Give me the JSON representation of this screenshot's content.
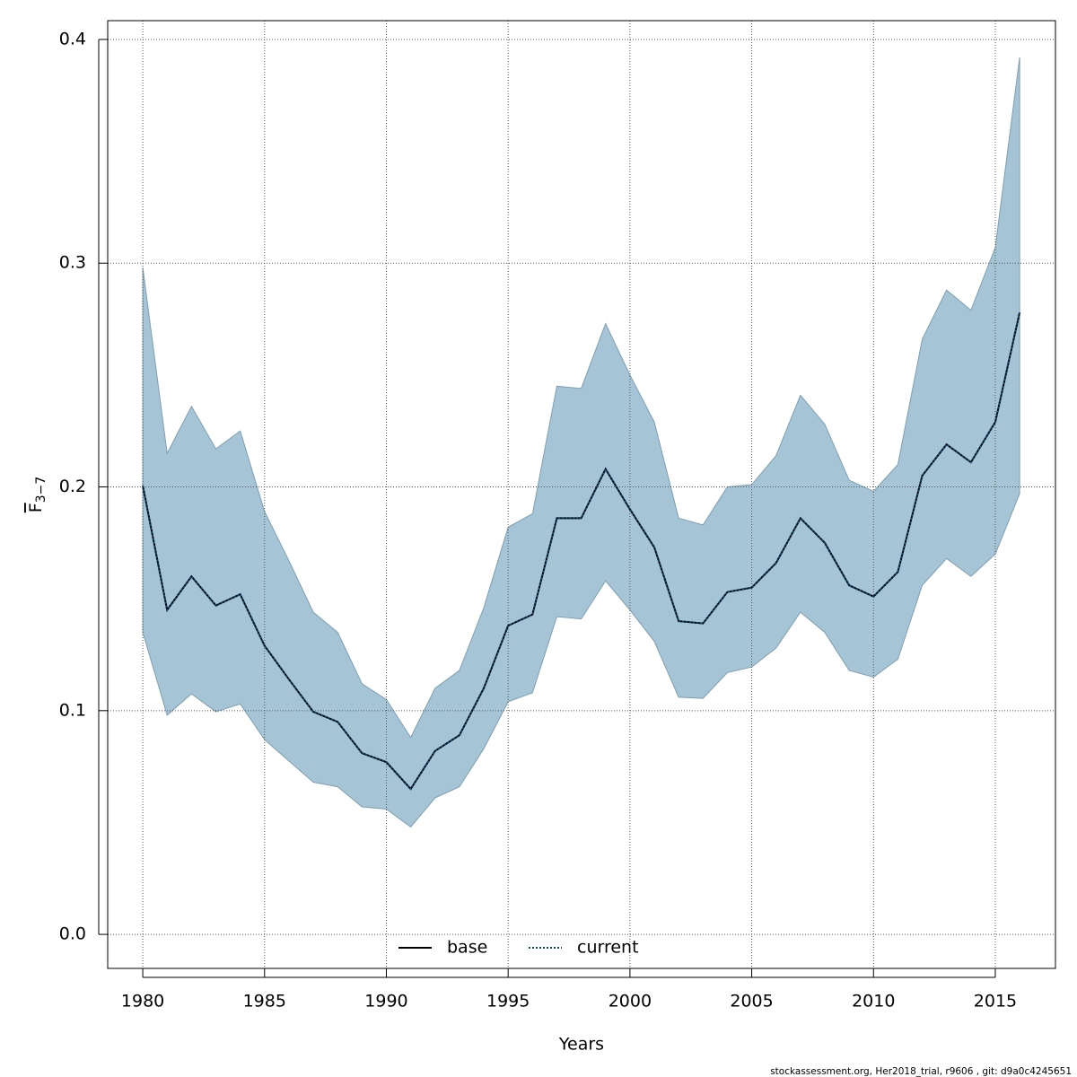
{
  "chart_data": {
    "type": "line",
    "xlabel": "Years",
    "ylabel": {
      "base": "F",
      "subscript": "3−7"
    },
    "footer": "stockassessment.org, Her2018_trial, r9606 , git: d9a0c4245651",
    "x": [
      1980,
      1981,
      1982,
      1983,
      1984,
      1985,
      1986,
      1987,
      1988,
      1989,
      1990,
      1991,
      1992,
      1993,
      1994,
      1995,
      1996,
      1997,
      1998,
      1999,
      2000,
      2001,
      2002,
      2003,
      2004,
      2005,
      2006,
      2007,
      2008,
      2009,
      2010,
      2011,
      2012,
      2013,
      2014,
      2015,
      2016
    ],
    "band": {
      "color": "#a5c4d6",
      "upper": [
        0.298,
        0.215,
        0.236,
        0.217,
        0.225,
        0.189,
        0.167,
        0.144,
        0.135,
        0.112,
        0.105,
        0.088,
        0.11,
        0.118,
        0.146,
        0.182,
        0.188,
        0.245,
        0.244,
        0.273,
        0.25,
        0.229,
        0.186,
        0.183,
        0.2,
        0.201,
        0.214,
        0.241,
        0.228,
        0.203,
        0.198,
        0.21,
        0.266,
        0.288,
        0.279,
        0.307,
        0.392
      ],
      "lower": [
        0.135,
        0.098,
        0.1075,
        0.0995,
        0.103,
        0.087,
        0.0775,
        0.068,
        0.066,
        0.057,
        0.056,
        0.048,
        0.061,
        0.066,
        0.083,
        0.104,
        0.108,
        0.142,
        0.141,
        0.158,
        0.145,
        0.131,
        0.106,
        0.1055,
        0.117,
        0.1195,
        0.128,
        0.144,
        0.135,
        0.118,
        0.115,
        0.123,
        0.156,
        0.168,
        0.16,
        0.17,
        0.197
      ]
    },
    "series": [
      {
        "name": "base",
        "color": "#000000",
        "dash": "solid",
        "values": [
          0.2006,
          0.145,
          0.16,
          0.147,
          0.152,
          0.129,
          0.114,
          0.0995,
          0.095,
          0.081,
          0.077,
          0.065,
          0.082,
          0.089,
          0.11,
          0.138,
          0.143,
          0.186,
          0.186,
          0.208,
          0.19,
          0.173,
          0.14,
          0.139,
          0.153,
          0.155,
          0.166,
          0.186,
          0.175,
          0.156,
          0.151,
          0.162,
          0.205,
          0.219,
          0.211,
          0.229,
          0.278
        ]
      },
      {
        "name": "current",
        "color": "#0b4f7a",
        "dash": "dotted",
        "values": [
          0.2006,
          0.145,
          0.16,
          0.147,
          0.152,
          0.129,
          0.114,
          0.0995,
          0.095,
          0.081,
          0.077,
          0.065,
          0.082,
          0.089,
          0.11,
          0.138,
          0.143,
          0.186,
          0.186,
          0.208,
          0.19,
          0.173,
          0.14,
          0.139,
          0.153,
          0.155,
          0.166,
          0.186,
          0.175,
          0.156,
          0.151,
          0.162,
          0.205,
          0.219,
          0.211,
          0.229,
          0.278
        ]
      }
    ],
    "xlim": [
      1978.56,
      2017.47
    ],
    "ylim": [
      -0.0152,
      0.4084
    ],
    "xticks": [
      1980,
      1985,
      1990,
      1995,
      2000,
      2005,
      2010,
      2015
    ],
    "yticks": [
      {
        "value": 0,
        "label": "0.0"
      },
      0.1,
      0.2,
      0.3,
      0.4
    ],
    "grid": true,
    "legend": "bottom"
  }
}
